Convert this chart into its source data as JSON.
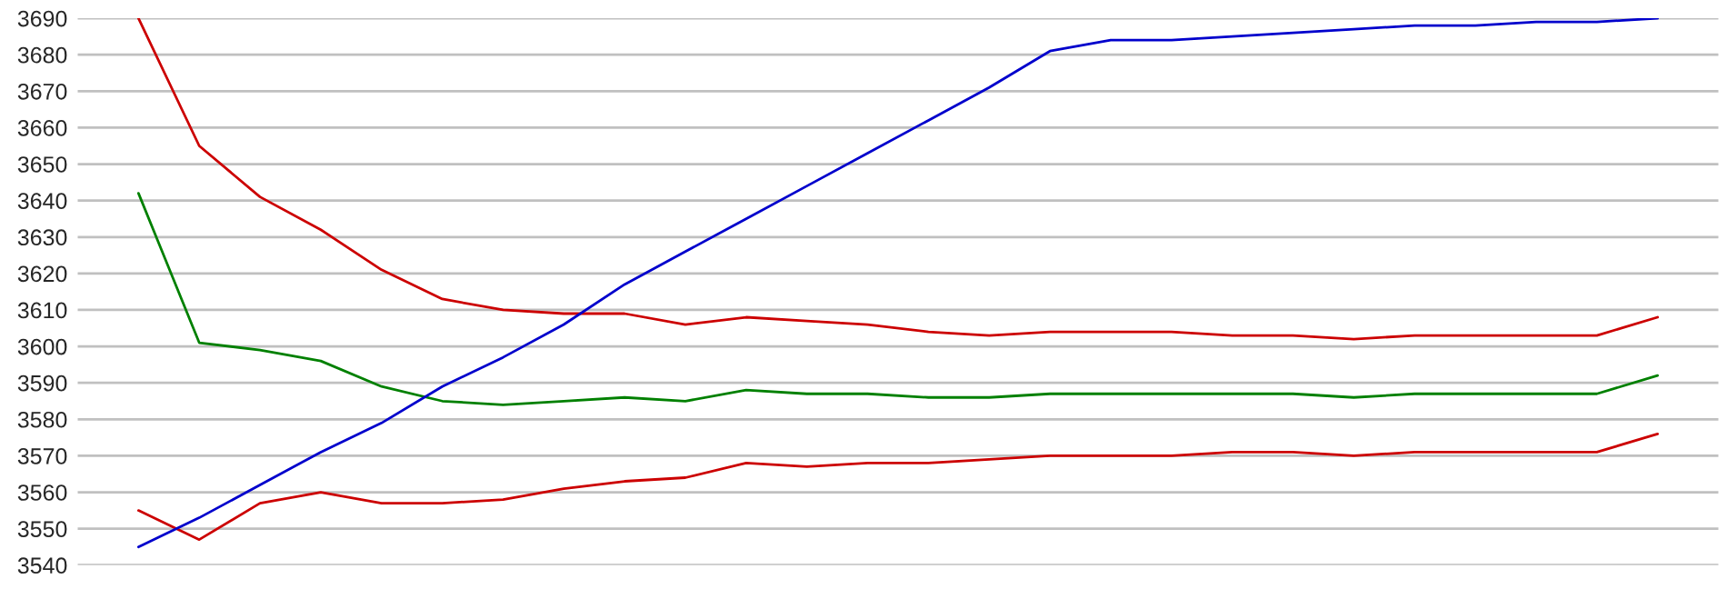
{
  "chart_data": {
    "type": "line",
    "categories": [
      null,
      null,
      null,
      null,
      null,
      null,
      null,
      null,
      null,
      null,
      null,
      null,
      null,
      null,
      null,
      null,
      null,
      null,
      null,
      null,
      null,
      null,
      null,
      null,
      null,
      null
    ],
    "ylim": [
      3540,
      3690
    ],
    "yticks": [
      3540,
      3550,
      3560,
      3570,
      3580,
      3590,
      3600,
      3610,
      3620,
      3630,
      3640,
      3650,
      3660,
      3670,
      3680,
      3690
    ],
    "grid": "y",
    "marker": "none",
    "line_style": "solid",
    "tick_labels": "y",
    "series": [
      {
        "color": "#cc0000",
        "values": [
          3690,
          3655,
          3641,
          3632,
          3621,
          3613,
          3610,
          3609,
          3609,
          3606,
          3608,
          3607,
          3606,
          3604,
          3603,
          3604,
          3604,
          3604,
          3603,
          3603,
          3602,
          3603,
          3603,
          3603,
          3603,
          3608
        ]
      },
      {
        "color": "#008000",
        "values": [
          3642,
          3601,
          3599,
          3596,
          3589,
          3585,
          3584,
          3585,
          3586,
          3585,
          3588,
          3587,
          3587,
          3586,
          3586,
          3587,
          3587,
          3587,
          3587,
          3587,
          3586,
          3587,
          3587,
          3587,
          3587,
          3592
        ]
      },
      {
        "color": "#cc0000",
        "values": [
          3555,
          3547,
          3557,
          3560,
          3557,
          3557,
          3558,
          3561,
          3563,
          3564,
          3568,
          3567,
          3568,
          3568,
          3569,
          3570,
          3570,
          3570,
          3571,
          3571,
          3570,
          3571,
          3571,
          3571,
          3571,
          3576
        ]
      },
      {
        "color": "#0000cc",
        "values": [
          3545,
          3553,
          3562,
          3571,
          3579,
          3589,
          3597,
          3606,
          3617,
          3626,
          3635,
          3644,
          3653,
          3662,
          3671,
          3681,
          3684,
          3684,
          3685,
          3686,
          3687,
          3688,
          3688,
          3689,
          3689,
          3690
        ]
      }
    ]
  }
}
